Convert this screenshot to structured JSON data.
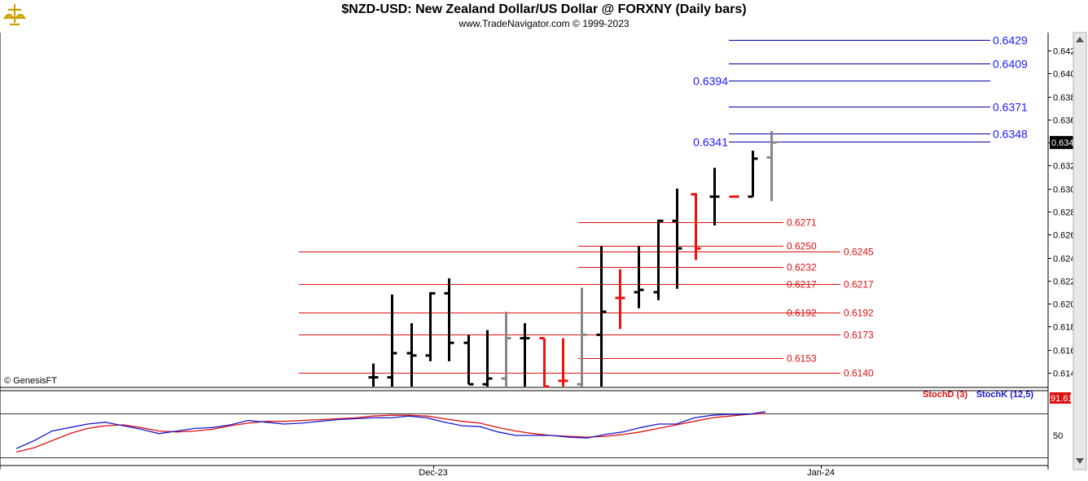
{
  "header": {
    "title": "$NZD-USD:  New Zealand Dollar/US Dollar @ FORXNY  (Daily bars)",
    "subtitle": "www.TradeNavigator.com © 1999-2023",
    "credit": "© GenesisFT"
  },
  "colors": {
    "up_bar": "#000000",
    "down_bar": "#ee1111",
    "neutral_bar": "#888888",
    "projection_line": "#0000a0",
    "projection_label": "#1a1aff",
    "retracement_line": "#dd1111",
    "retracement_label": "#dd1111",
    "stoch_d": "#dd1111",
    "stoch_k": "#1a1acc"
  },
  "chart_data": [
    {
      "type": "ohlc",
      "title": "$NZD-USD:  New Zealand Dollar/US Dollar @ FORXNY  (Daily bars)",
      "y_axis": {
        "ticks": [
          "0.6140",
          "0.6160",
          "0.6180",
          "0.6200",
          "0.6220",
          "0.6240",
          "0.6260",
          "0.6280",
          "0.6300",
          "0.6320",
          "0.6340",
          "0.6360",
          "0.6380",
          "0.6400",
          "0.6420"
        ],
        "range": [
          0.6128,
          0.6438
        ]
      },
      "x_axis": {
        "labels": [
          "Dec-23",
          "Jan-24"
        ]
      },
      "last_price": "0.6340",
      "bars": [
        {
          "o": 0.6136,
          "h": 0.6148,
          "l": 0.6128,
          "c": 0.6136,
          "color": "black"
        },
        {
          "o": 0.6136,
          "h": 0.6208,
          "l": 0.6128,
          "c": 0.6157,
          "color": "black"
        },
        {
          "o": 0.6157,
          "h": 0.6183,
          "l": 0.6128,
          "c": 0.6155,
          "color": "black"
        },
        {
          "o": 0.6155,
          "h": 0.621,
          "l": 0.615,
          "c": 0.6209,
          "color": "black"
        },
        {
          "o": 0.6209,
          "h": 0.6222,
          "l": 0.615,
          "c": 0.6166,
          "color": "black"
        },
        {
          "o": 0.6166,
          "h": 0.6173,
          "l": 0.613,
          "c": 0.613,
          "color": "black"
        },
        {
          "o": 0.613,
          "h": 0.6177,
          "l": 0.6128,
          "c": 0.6135,
          "color": "black"
        },
        {
          "o": 0.6135,
          "h": 0.6193,
          "l": 0.6128,
          "c": 0.617,
          "color": "gray"
        },
        {
          "o": 0.617,
          "h": 0.6183,
          "l": 0.6128,
          "c": 0.617,
          "color": "black"
        },
        {
          "o": 0.617,
          "h": 0.617,
          "l": 0.6128,
          "c": 0.6128,
          "color": "red"
        },
        {
          "o": 0.6133,
          "h": 0.617,
          "l": 0.6128,
          "c": 0.6133,
          "color": "red"
        },
        {
          "o": 0.613,
          "h": 0.6214,
          "l": 0.6128,
          "c": 0.6173,
          "color": "gray"
        },
        {
          "o": 0.6173,
          "h": 0.625,
          "l": 0.6128,
          "c": 0.6193,
          "color": "black"
        },
        {
          "o": 0.6205,
          "h": 0.623,
          "l": 0.6178,
          "c": 0.6205,
          "color": "red"
        },
        {
          "o": 0.621,
          "h": 0.625,
          "l": 0.6196,
          "c": 0.6212,
          "color": "black"
        },
        {
          "o": 0.621,
          "h": 0.6273,
          "l": 0.6203,
          "c": 0.6272,
          "color": "black"
        },
        {
          "o": 0.6272,
          "h": 0.63,
          "l": 0.6213,
          "c": 0.6248,
          "color": "black"
        },
        {
          "o": 0.6295,
          "h": 0.6296,
          "l": 0.6238,
          "c": 0.6248,
          "color": "red"
        },
        {
          "o": 0.6293,
          "h": 0.6318,
          "l": 0.6268,
          "c": 0.6293,
          "color": "black"
        },
        {
          "o": 0.6293,
          "h": 0.6293,
          "l": 0.6293,
          "c": 0.6293,
          "color": "red"
        },
        {
          "o": 0.6293,
          "h": 0.6333,
          "l": 0.6293,
          "c": 0.6326,
          "color": "black"
        },
        {
          "o": 0.6327,
          "h": 0.635,
          "l": 0.6289,
          "c": 0.634,
          "color": "gray"
        }
      ],
      "projection_levels": [
        {
          "value": 0.6429,
          "label": "0.6429",
          "label_side": "right"
        },
        {
          "value": 0.6409,
          "label": "0.6409",
          "label_side": "right"
        },
        {
          "value": 0.6394,
          "label": "0.6394",
          "label_side": "left"
        },
        {
          "value": 0.6371,
          "label": "0.6371",
          "label_side": "right"
        },
        {
          "value": 0.6348,
          "label": "0.6348",
          "label_side": "right"
        },
        {
          "value": 0.6341,
          "label": "0.6341",
          "label_side": "left"
        }
      ],
      "retracement_levels": [
        {
          "value": 0.6271,
          "label": "0.6271",
          "group": "inner"
        },
        {
          "value": 0.625,
          "label": "0.6250",
          "group": "inner"
        },
        {
          "value": 0.6232,
          "label": "0.6232",
          "group": "inner"
        },
        {
          "value": 0.6217,
          "label": "0.6217",
          "group": "inner"
        },
        {
          "value": 0.6192,
          "label": "0.6192",
          "group": "inner"
        },
        {
          "value": 0.6153,
          "label": "0.6153",
          "group": "inner"
        },
        {
          "value": 0.6245,
          "label": "0.6245",
          "group": "outer"
        },
        {
          "value": 0.6217,
          "label": "0.6217",
          "group": "outer"
        },
        {
          "value": 0.6192,
          "label": "0.6192",
          "group": "outer"
        },
        {
          "value": 0.6173,
          "label": "0.6173",
          "group": "outer"
        },
        {
          "value": 0.614,
          "label": "0.6140",
          "group": "outer"
        }
      ]
    },
    {
      "type": "line",
      "y_axis": {
        "ticks": [
          "50"
        ],
        "range": [
          30,
          100
        ]
      },
      "legend": [
        "StochD (3)",
        "StochK (12,5)"
      ],
      "last_value": "91.61",
      "series": [
        {
          "name": "StochD (3)",
          "values": [
            31,
            36,
            44,
            52,
            58,
            61,
            62,
            59,
            55,
            54,
            55,
            57,
            61,
            64,
            66,
            66,
            67,
            68,
            69,
            70,
            72,
            73,
            73,
            72,
            69,
            66,
            64,
            59,
            55,
            52,
            50,
            49,
            48,
            49,
            51,
            54,
            58,
            62,
            66,
            70,
            72,
            74,
            75
          ]
        },
        {
          "name": "StochK (12,5)",
          "values": [
            35,
            44,
            55,
            59,
            63,
            65,
            61,
            57,
            52,
            55,
            58,
            59,
            62,
            67,
            65,
            63,
            64,
            66,
            68,
            69,
            70,
            70,
            72,
            70,
            65,
            61,
            60,
            54,
            50,
            50,
            50,
            48,
            47,
            51,
            54,
            59,
            63,
            63,
            70,
            73,
            74,
            74,
            77
          ]
        }
      ]
    }
  ]
}
